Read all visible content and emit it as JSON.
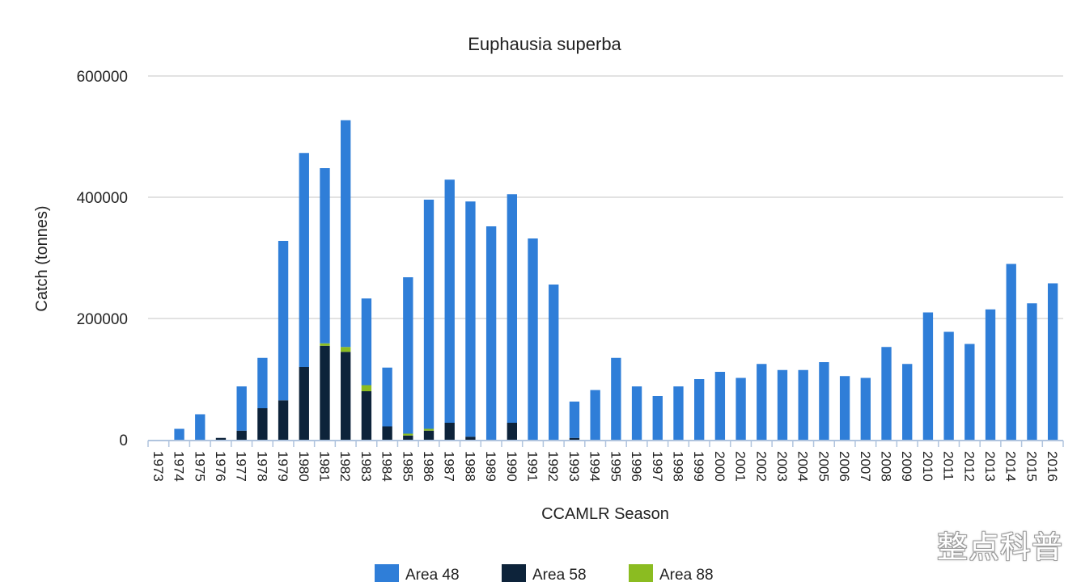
{
  "watermark": "整点科普",
  "colors": {
    "area48": "#2f7ed8",
    "area58": "#0d233a",
    "area88": "#8bbc21",
    "grid": "#d8d8d8",
    "axis": "#b0c4de"
  },
  "chart_data": {
    "type": "bar",
    "stacked": true,
    "title": "Euphausia superba",
    "xlabel": "CCAMLR Season",
    "ylabel": "Catch (tonnes)",
    "ylim": [
      0,
      600000
    ],
    "yticks": [
      0,
      200000,
      400000,
      600000
    ],
    "ytick_labels": [
      "0",
      "200000",
      "400000",
      "600000"
    ],
    "grid": true,
    "legend_position": "bottom",
    "categories": [
      "1973",
      "1974",
      "1975",
      "1976",
      "1977",
      "1978",
      "1979",
      "1980",
      "1981",
      "1982",
      "1983",
      "1984",
      "1985",
      "1986",
      "1987",
      "1988",
      "1989",
      "1990",
      "1991",
      "1992",
      "1993",
      "1994",
      "1995",
      "1996",
      "1997",
      "1998",
      "1999",
      "2000",
      "2001",
      "2002",
      "2003",
      "2004",
      "2005",
      "2006",
      "2007",
      "2008",
      "2009",
      "2010",
      "2011",
      "2012",
      "2013",
      "2014",
      "2015",
      "2016"
    ],
    "series": [
      {
        "name": "Area 58",
        "color": "#0d233a",
        "values": [
          0,
          0,
          0,
          3000,
          15000,
          52000,
          65000,
          120000,
          155000,
          145000,
          80000,
          22000,
          7000,
          15000,
          28000,
          5000,
          0,
          28000,
          0,
          0,
          3000,
          0,
          0,
          0,
          0,
          0,
          0,
          0,
          0,
          0,
          0,
          0,
          0,
          0,
          0,
          0,
          0,
          0,
          0,
          0,
          0,
          0,
          0,
          0
        ]
      },
      {
        "name": "Area 88",
        "color": "#8bbc21",
        "values": [
          0,
          0,
          0,
          0,
          0,
          0,
          0,
          0,
          4000,
          8000,
          10000,
          0,
          3000,
          3000,
          0,
          0,
          0,
          0,
          0,
          0,
          0,
          0,
          0,
          0,
          0,
          0,
          0,
          0,
          0,
          0,
          0,
          0,
          0,
          0,
          0,
          0,
          0,
          0,
          0,
          0,
          0,
          0,
          0,
          0
        ]
      },
      {
        "name": "Area 48",
        "color": "#2f7ed8",
        "values": [
          0,
          18000,
          42000,
          0,
          73000,
          83000,
          263000,
          353000,
          289000,
          374000,
          143000,
          97000,
          258000,
          378000,
          401000,
          388000,
          352000,
          377000,
          332000,
          256000,
          60000,
          82000,
          135000,
          88000,
          72000,
          88000,
          100000,
          112000,
          102000,
          125000,
          115000,
          115000,
          128000,
          105000,
          102000,
          153000,
          125000,
          210000,
          178000,
          158000,
          215000,
          290000,
          225000,
          258000
        ]
      }
    ],
    "legend_order": [
      "Area 48",
      "Area 58",
      "Area 88"
    ]
  }
}
